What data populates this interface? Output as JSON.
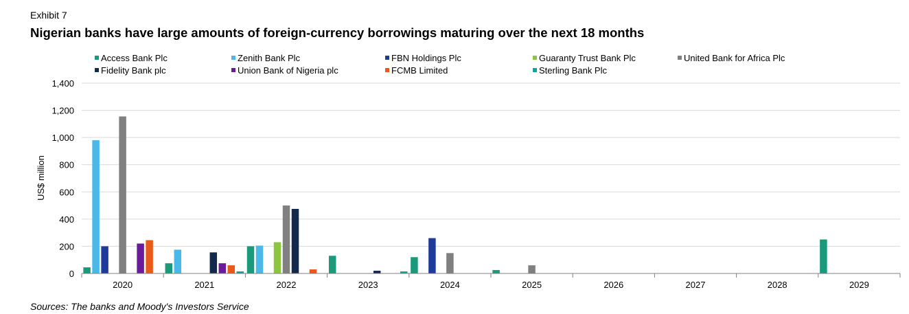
{
  "header": {
    "exhibit": "Exhibit 7",
    "title": "Nigerian banks have large amounts of foreign-currency borrowings maturing over the next 18 months"
  },
  "source": "Sources: The banks and Moody's Investors Service",
  "chart_data": {
    "type": "bar",
    "ylabel": "US$ million",
    "xlabel": "",
    "ylim": [
      0,
      1400
    ],
    "yticks": [
      0,
      200,
      400,
      600,
      800,
      1000,
      1200,
      1400
    ],
    "ytick_labels": [
      "0",
      "200",
      "400",
      "600",
      "800",
      "1,000",
      "1,200",
      "1,400"
    ],
    "grid": true,
    "legend_position": "top",
    "categories": [
      "2020",
      "2021",
      "2022",
      "2023",
      "2024",
      "2025",
      "2026",
      "2027",
      "2028",
      "2029"
    ],
    "series": [
      {
        "name": "Access Bank Plc",
        "color": "#1a9a7a",
        "values": [
          45,
          75,
          200,
          130,
          120,
          25,
          0,
          0,
          0,
          250
        ]
      },
      {
        "name": "Zenith Bank Plc",
        "color": "#4ab8e8",
        "values": [
          980,
          175,
          205,
          0,
          0,
          0,
          0,
          0,
          0,
          0
        ]
      },
      {
        "name": "FBN Holdings Plc",
        "color": "#1e3a9a",
        "values": [
          200,
          0,
          0,
          0,
          260,
          0,
          0,
          0,
          0,
          0
        ]
      },
      {
        "name": "Guaranty Trust Bank Plc",
        "color": "#8cc63f",
        "values": [
          0,
          0,
          230,
          0,
          0,
          0,
          0,
          0,
          0,
          0
        ]
      },
      {
        "name": "United Bank for Africa Plc",
        "color": "#808080",
        "values": [
          1155,
          0,
          500,
          0,
          150,
          60,
          0,
          0,
          0,
          0
        ]
      },
      {
        "name": "Fidelity Bank plc",
        "color": "#13294b",
        "values": [
          0,
          155,
          475,
          20,
          0,
          0,
          0,
          0,
          0,
          0
        ]
      },
      {
        "name": "Union Bank of Nigeria plc",
        "color": "#6a1b9a",
        "values": [
          220,
          75,
          0,
          0,
          0,
          0,
          0,
          0,
          0,
          0
        ]
      },
      {
        "name": "FCMB Limited",
        "color": "#e8591a",
        "values": [
          245,
          60,
          30,
          0,
          0,
          0,
          0,
          0,
          0,
          0
        ]
      },
      {
        "name": "Sterling Bank Plc",
        "color": "#15a0a0",
        "values": [
          0,
          15,
          0,
          15,
          0,
          0,
          0,
          0,
          0,
          0
        ]
      }
    ]
  }
}
